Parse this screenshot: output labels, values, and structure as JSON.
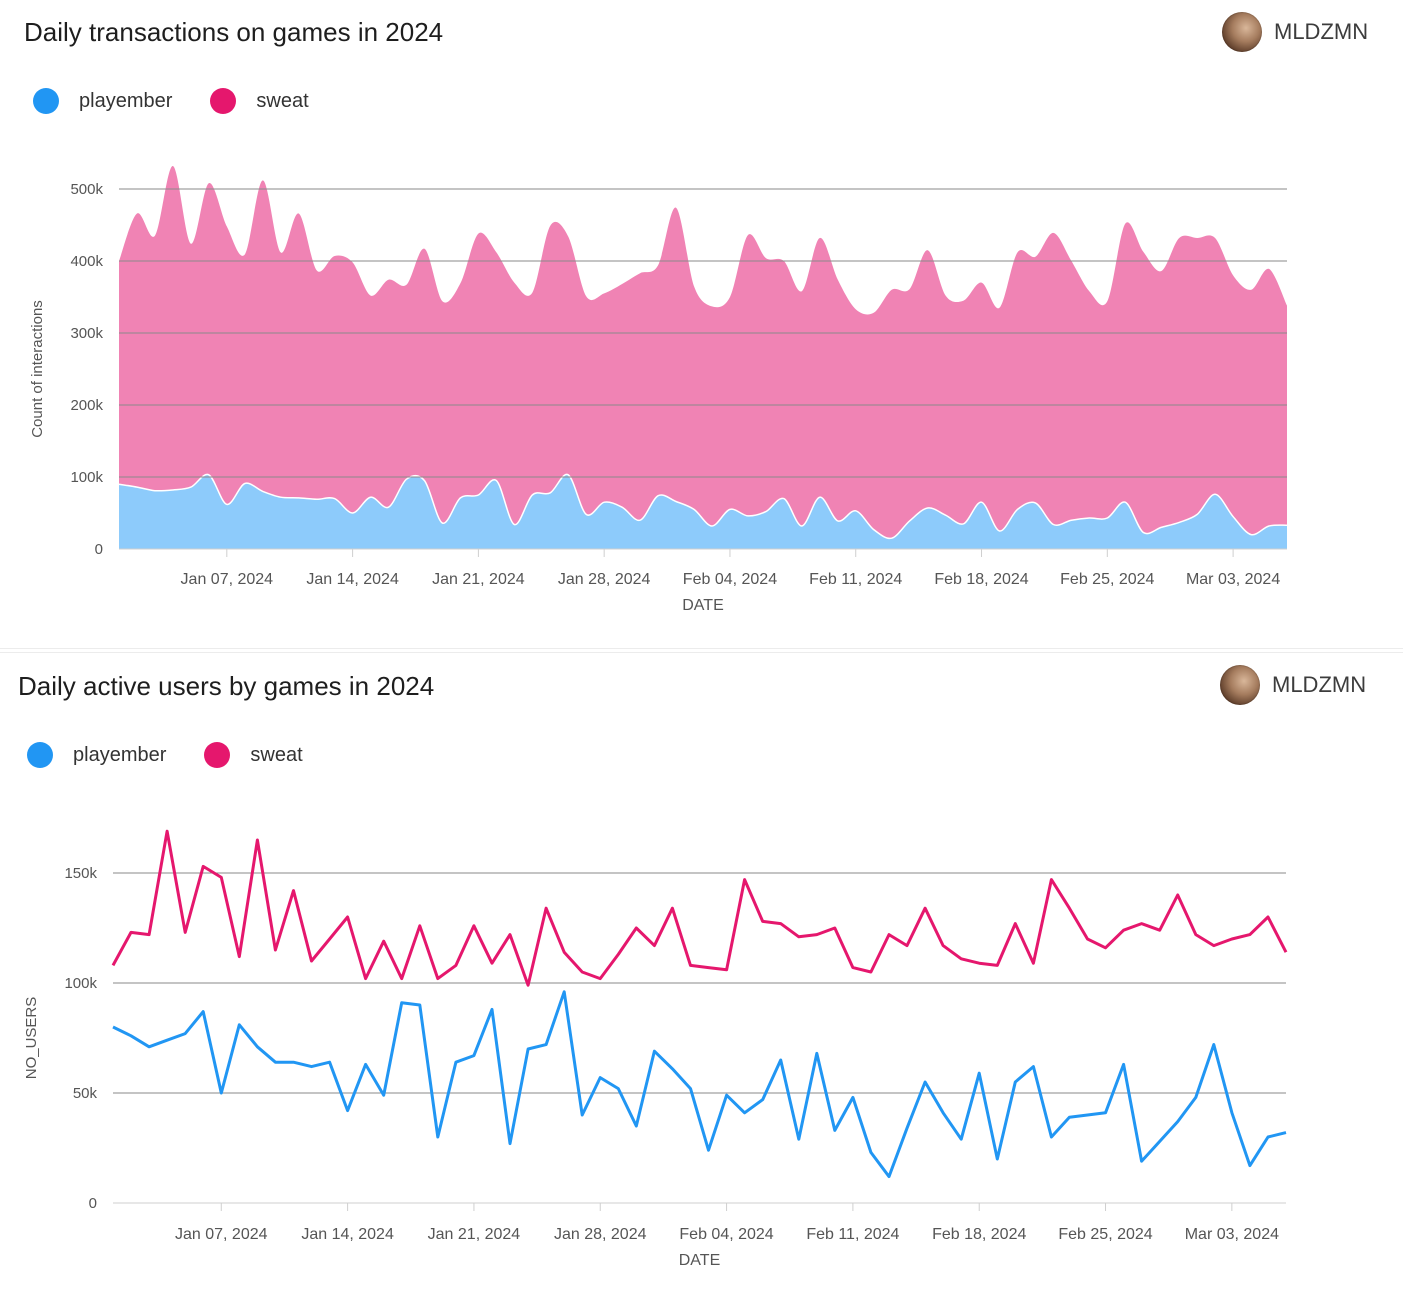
{
  "colors": {
    "playember": "#2196f3",
    "sweat": "#e5176d",
    "area_playember": "#8dcbfb",
    "area_sweat": "#f083b4",
    "grid": "#8a8a8a"
  },
  "chart_data": [
    {
      "type": "area",
      "stacked": true,
      "title": "Daily transactions on games in 2024",
      "author": "MLDZMN",
      "xlabel": "DATE",
      "ylabel": "Count of interactions",
      "ylim": [
        0,
        500000
      ],
      "yticks": [
        {
          "value": 0,
          "label": "0"
        },
        {
          "value": 100000,
          "label": "100k"
        },
        {
          "value": 200000,
          "label": "200k"
        },
        {
          "value": 300000,
          "label": "300k"
        },
        {
          "value": 400000,
          "label": "400k"
        },
        {
          "value": 500000,
          "label": "500k"
        }
      ],
      "xlim": [
        "2024-01-01",
        "2024-03-06"
      ],
      "xticks": [
        {
          "date": "2024-01-07",
          "label": "Jan 07, 2024"
        },
        {
          "date": "2024-01-14",
          "label": "Jan 14, 2024"
        },
        {
          "date": "2024-01-21",
          "label": "Jan 21, 2024"
        },
        {
          "date": "2024-01-28",
          "label": "Jan 28, 2024"
        },
        {
          "date": "2024-02-04",
          "label": "Feb 04, 2024"
        },
        {
          "date": "2024-02-11",
          "label": "Feb 11, 2024"
        },
        {
          "date": "2024-02-18",
          "label": "Feb 18, 2024"
        },
        {
          "date": "2024-02-25",
          "label": "Feb 25, 2024"
        },
        {
          "date": "2024-03-03",
          "label": "Mar 03, 2024"
        }
      ],
      "legend": "top-left",
      "grid": true,
      "x": [
        "2024-01-01",
        "2024-01-02",
        "2024-01-03",
        "2024-01-04",
        "2024-01-05",
        "2024-01-06",
        "2024-01-07",
        "2024-01-08",
        "2024-01-09",
        "2024-01-10",
        "2024-01-11",
        "2024-01-12",
        "2024-01-13",
        "2024-01-14",
        "2024-01-15",
        "2024-01-16",
        "2024-01-17",
        "2024-01-18",
        "2024-01-19",
        "2024-01-20",
        "2024-01-21",
        "2024-01-22",
        "2024-01-23",
        "2024-01-24",
        "2024-01-25",
        "2024-01-26",
        "2024-01-27",
        "2024-01-28",
        "2024-01-29",
        "2024-01-30",
        "2024-01-31",
        "2024-02-01",
        "2024-02-02",
        "2024-02-03",
        "2024-02-04",
        "2024-02-05",
        "2024-02-06",
        "2024-02-07",
        "2024-02-08",
        "2024-02-09",
        "2024-02-10",
        "2024-02-11",
        "2024-02-12",
        "2024-02-13",
        "2024-02-14",
        "2024-02-15",
        "2024-02-16",
        "2024-02-17",
        "2024-02-18",
        "2024-02-19",
        "2024-02-20",
        "2024-02-21",
        "2024-02-22",
        "2024-02-23",
        "2024-02-24",
        "2024-02-25",
        "2024-02-26",
        "2024-02-27",
        "2024-02-28",
        "2024-02-29",
        "2024-03-01",
        "2024-03-02",
        "2024-03-03",
        "2024-03-04",
        "2024-03-05",
        "2024-03-06"
      ],
      "series": [
        {
          "name": "playember",
          "values": [
            90000,
            86000,
            81000,
            82000,
            86000,
            103000,
            62000,
            91000,
            80000,
            72000,
            71000,
            69000,
            70000,
            50000,
            72000,
            58000,
            97000,
            95000,
            36000,
            71000,
            75000,
            95000,
            34000,
            75000,
            78000,
            103000,
            48000,
            65000,
            58000,
            40000,
            74000,
            66000,
            55000,
            32000,
            55000,
            46000,
            52000,
            70000,
            32000,
            72000,
            39000,
            53000,
            27000,
            15000,
            39000,
            57000,
            47000,
            35000,
            65000,
            25000,
            55000,
            64000,
            34000,
            40000,
            43000,
            43000,
            65000,
            23000,
            30000,
            37000,
            48000,
            76000,
            45000,
            20000,
            32000,
            33000
          ]
        },
        {
          "name": "sweat",
          "values": [
            310000,
            380000,
            354000,
            450000,
            338000,
            405000,
            386000,
            318000,
            432000,
            340000,
            395000,
            318000,
            337000,
            348000,
            280000,
            316000,
            270000,
            322000,
            308000,
            298000,
            363000,
            317000,
            336000,
            281000,
            371000,
            331000,
            303000,
            290000,
            310000,
            343000,
            320000,
            408000,
            310000,
            305000,
            295000,
            390000,
            352000,
            330000,
            326000,
            360000,
            335000,
            280000,
            301000,
            345000,
            322000,
            358000,
            305000,
            310000,
            305000,
            310000,
            357000,
            342000,
            405000,
            360000,
            315000,
            301000,
            387000,
            390000,
            356000,
            395000,
            384000,
            356000,
            335000,
            340000,
            357000,
            305000
          ]
        }
      ]
    },
    {
      "type": "line",
      "title": "Daily active users by games in 2024",
      "author": "MLDZMN",
      "xlabel": "DATE",
      "ylabel": "NO_USERS",
      "ylim": [
        0,
        150000
      ],
      "yticks": [
        {
          "value": 0,
          "label": "0"
        },
        {
          "value": 50000,
          "label": "50k"
        },
        {
          "value": 100000,
          "label": "100k"
        },
        {
          "value": 150000,
          "label": "150k"
        }
      ],
      "xlim": [
        "2024-01-01",
        "2024-03-06"
      ],
      "xticks": [
        {
          "date": "2024-01-07",
          "label": "Jan 07, 2024"
        },
        {
          "date": "2024-01-14",
          "label": "Jan 14, 2024"
        },
        {
          "date": "2024-01-21",
          "label": "Jan 21, 2024"
        },
        {
          "date": "2024-01-28",
          "label": "Jan 28, 2024"
        },
        {
          "date": "2024-02-04",
          "label": "Feb 04, 2024"
        },
        {
          "date": "2024-02-11",
          "label": "Feb 11, 2024"
        },
        {
          "date": "2024-02-18",
          "label": "Feb 18, 2024"
        },
        {
          "date": "2024-02-25",
          "label": "Feb 25, 2024"
        },
        {
          "date": "2024-03-03",
          "label": "Mar 03, 2024"
        }
      ],
      "legend": "top-left",
      "grid": true,
      "x": [
        "2024-01-01",
        "2024-01-02",
        "2024-01-03",
        "2024-01-04",
        "2024-01-05",
        "2024-01-06",
        "2024-01-07",
        "2024-01-08",
        "2024-01-09",
        "2024-01-10",
        "2024-01-11",
        "2024-01-12",
        "2024-01-13",
        "2024-01-14",
        "2024-01-15",
        "2024-01-16",
        "2024-01-17",
        "2024-01-18",
        "2024-01-19",
        "2024-01-20",
        "2024-01-21",
        "2024-01-22",
        "2024-01-23",
        "2024-01-24",
        "2024-01-25",
        "2024-01-26",
        "2024-01-27",
        "2024-01-28",
        "2024-01-29",
        "2024-01-30",
        "2024-01-31",
        "2024-02-01",
        "2024-02-02",
        "2024-02-03",
        "2024-02-04",
        "2024-02-05",
        "2024-02-06",
        "2024-02-07",
        "2024-02-08",
        "2024-02-09",
        "2024-02-10",
        "2024-02-11",
        "2024-02-12",
        "2024-02-13",
        "2024-02-14",
        "2024-02-15",
        "2024-02-16",
        "2024-02-17",
        "2024-02-18",
        "2024-02-19",
        "2024-02-20",
        "2024-02-21",
        "2024-02-22",
        "2024-02-23",
        "2024-02-24",
        "2024-02-25",
        "2024-02-26",
        "2024-02-27",
        "2024-02-28",
        "2024-02-29",
        "2024-03-01",
        "2024-03-02",
        "2024-03-03",
        "2024-03-04",
        "2024-03-05",
        "2024-03-06"
      ],
      "series": [
        {
          "name": "playember",
          "values": [
            80000,
            76000,
            71000,
            74000,
            77000,
            87000,
            50000,
            81000,
            71000,
            64000,
            64000,
            62000,
            64000,
            42000,
            63000,
            49000,
            91000,
            90000,
            30000,
            64000,
            67000,
            88000,
            27000,
            70000,
            72000,
            96000,
            40000,
            57000,
            52000,
            35000,
            69000,
            61000,
            52000,
            24000,
            49000,
            41000,
            47000,
            65000,
            29000,
            68000,
            33000,
            48000,
            23000,
            12000,
            34000,
            55000,
            41000,
            29000,
            59000,
            20000,
            55000,
            62000,
            30000,
            39000,
            40000,
            41000,
            63000,
            19000,
            28000,
            37000,
            48000,
            72000,
            41000,
            17000,
            30000,
            32000
          ]
        },
        {
          "name": "sweat",
          "values": [
            108000,
            123000,
            122000,
            169000,
            123000,
            153000,
            148000,
            112000,
            165000,
            115000,
            142000,
            110000,
            120000,
            130000,
            102000,
            119000,
            102000,
            126000,
            102000,
            108000,
            126000,
            109000,
            122000,
            99000,
            134000,
            114000,
            105000,
            102000,
            113000,
            125000,
            117000,
            134000,
            108000,
            107000,
            106000,
            147000,
            128000,
            127000,
            121000,
            122000,
            125000,
            107000,
            105000,
            122000,
            117000,
            134000,
            117000,
            111000,
            109000,
            108000,
            127000,
            109000,
            147000,
            134000,
            120000,
            116000,
            124000,
            127000,
            124000,
            140000,
            122000,
            117000,
            120000,
            122000,
            130000,
            114000
          ]
        }
      ]
    }
  ]
}
